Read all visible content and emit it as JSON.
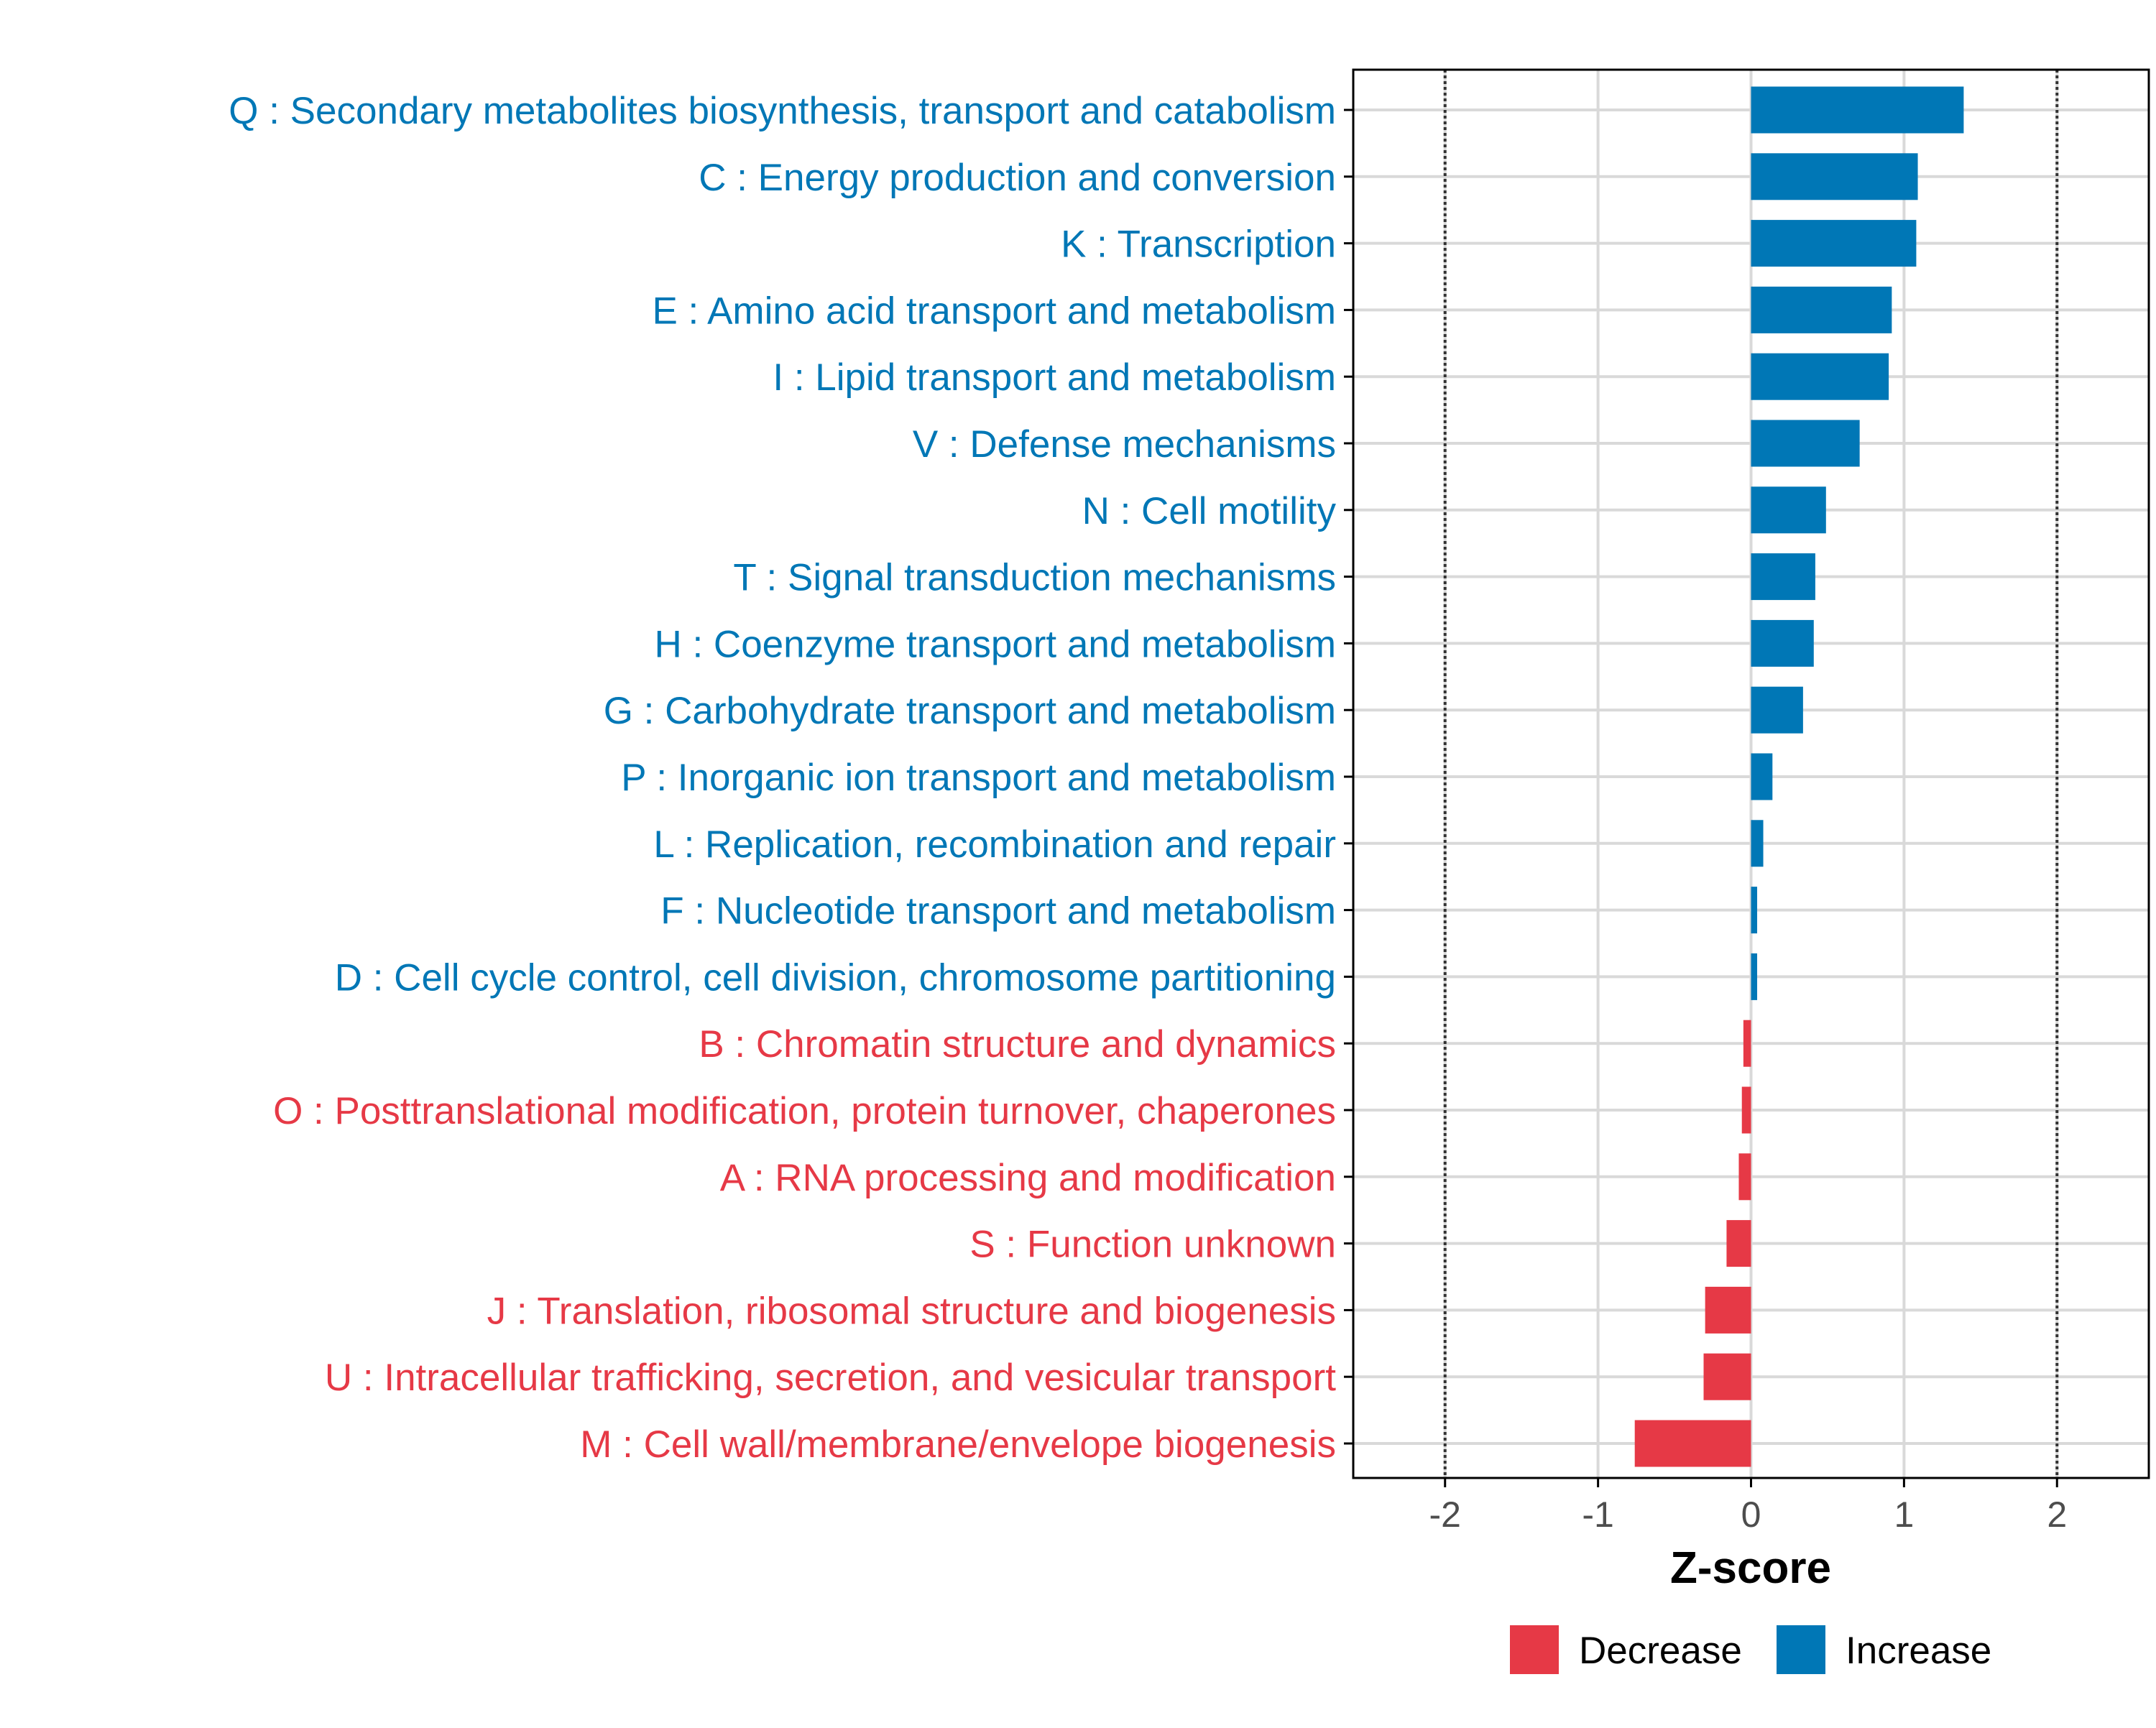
{
  "chart_data": {
    "type": "bar",
    "orientation": "horizontal",
    "xlabel": "Z-score",
    "ylabel": "",
    "xlim": [
      -2.6,
      2.6
    ],
    "xticks": [
      -2,
      -1,
      0,
      1,
      2
    ],
    "xtick_labels": [
      "-2",
      "-1",
      "0",
      "1",
      "2"
    ],
    "reference_lines": [
      -2,
      2
    ],
    "grid": true,
    "legend_position": "bottom",
    "categories": [
      "Q : Secondary metabolites biosynthesis, transport and catabolism",
      "C : Energy production and conversion",
      "K : Transcription",
      "E : Amino acid transport and metabolism",
      "I : Lipid transport and metabolism",
      "V : Defense mechanisms",
      "N : Cell motility",
      "T : Signal transduction mechanisms",
      "H : Coenzyme transport and metabolism",
      "G : Carbohydrate transport and metabolism",
      "P : Inorganic ion transport and metabolism",
      "L : Replication, recombination and repair",
      "F : Nucleotide transport and metabolism",
      "D : Cell cycle control, cell division, chromosome partitioning",
      "B : Chromatin structure and dynamics",
      "O : Posttranslational modification, protein turnover, chaperones",
      "A : RNA processing and modification",
      "S : Function unknown",
      "J : Translation, ribosomal structure and biogenesis",
      "U : Intracellular trafficking, secretion, and vesicular transport",
      "M : Cell wall/membrane/envelope biogenesis"
    ],
    "values": [
      1.39,
      1.09,
      1.08,
      0.92,
      0.9,
      0.71,
      0.49,
      0.42,
      0.41,
      0.34,
      0.14,
      0.08,
      0.04,
      0.04,
      -0.05,
      -0.06,
      -0.08,
      -0.16,
      -0.3,
      -0.31,
      -0.76
    ],
    "groups": [
      "Increase",
      "Increase",
      "Increase",
      "Increase",
      "Increase",
      "Increase",
      "Increase",
      "Increase",
      "Increase",
      "Increase",
      "Increase",
      "Increase",
      "Increase",
      "Increase",
      "Decrease",
      "Decrease",
      "Decrease",
      "Decrease",
      "Decrease",
      "Decrease",
      "Decrease"
    ],
    "legend": [
      {
        "label": "Decrease",
        "color": "#e63946"
      },
      {
        "label": "Increase",
        "color": "#0077b6"
      }
    ],
    "colors": {
      "Increase": "#0077b6",
      "Decrease": "#e63946",
      "grid": "#d9d9d9",
      "axis": "#000000",
      "tick_label": "#4d4d4d",
      "reference_line": "#333333"
    }
  }
}
